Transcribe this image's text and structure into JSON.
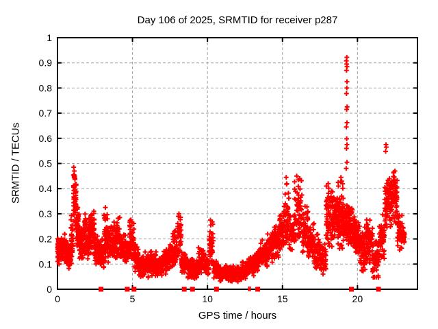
{
  "window": {
    "background": "#ffffff"
  },
  "chart_data": {
    "type": "scatter",
    "marker": "plus",
    "title": "Day 106 of 2025, SRMTID for receiver p287",
    "xlabel": "GPS time / hours",
    "ylabel": "SRMTID / TECUs",
    "xlim": [
      0,
      24
    ],
    "ylim": [
      0,
      1
    ],
    "grid": true,
    "legend": "none",
    "xticks": [
      0,
      5,
      10,
      15,
      20
    ],
    "xtick_labels": [
      "0",
      "5",
      "10",
      "15",
      "20"
    ],
    "yticks": [
      0,
      0.1,
      0.2,
      0.3,
      0.4,
      0.5,
      0.6,
      0.7,
      0.8,
      0.9,
      1
    ],
    "ytick_labels": [
      "0",
      "0.1",
      "0.2",
      "0.3",
      "0.4",
      "0.5",
      "0.6",
      "0.7",
      "0.8",
      "0.9",
      "1"
    ],
    "colors": {
      "marker": "#ff0000",
      "grid": "#a0a0a0",
      "axis": "#000000",
      "text": "#000000"
    },
    "sample_interval_hours": 0.008333,
    "count_scale": 0.7,
    "density_segments": [
      [
        0.0,
        0.3,
        0.1,
        0.21,
        90
      ],
      [
        0.3,
        0.6,
        0.11,
        0.22,
        90
      ],
      [
        0.6,
        0.9,
        0.07,
        0.19,
        80
      ],
      [
        0.9,
        1.05,
        0.1,
        0.3,
        40
      ],
      [
        1.05,
        1.25,
        0.25,
        0.47,
        70
      ],
      [
        1.25,
        1.45,
        0.17,
        0.33,
        60
      ],
      [
        1.45,
        1.7,
        0.12,
        0.26,
        65
      ],
      [
        1.7,
        1.9,
        0.14,
        0.32,
        55
      ],
      [
        1.9,
        2.1,
        0.12,
        0.25,
        55
      ],
      [
        2.1,
        2.45,
        0.14,
        0.33,
        85
      ],
      [
        2.45,
        2.8,
        0.1,
        0.22,
        80
      ],
      [
        2.8,
        3.1,
        0.08,
        0.2,
        70
      ],
      [
        3.1,
        3.35,
        0.11,
        0.33,
        60
      ],
      [
        3.35,
        3.6,
        0.1,
        0.25,
        60
      ],
      [
        3.6,
        3.9,
        0.11,
        0.28,
        70
      ],
      [
        3.9,
        4.2,
        0.12,
        0.3,
        70
      ],
      [
        4.2,
        4.55,
        0.1,
        0.22,
        75
      ],
      [
        4.55,
        4.8,
        0.11,
        0.2,
        55
      ],
      [
        4.8,
        5.1,
        0.12,
        0.28,
        65
      ],
      [
        5.1,
        5.4,
        0.07,
        0.18,
        60
      ],
      [
        5.4,
        5.8,
        0.05,
        0.13,
        75
      ],
      [
        5.8,
        6.2,
        0.04,
        0.15,
        80
      ],
      [
        6.2,
        6.6,
        0.05,
        0.16,
        80
      ],
      [
        6.6,
        7.0,
        0.05,
        0.13,
        75
      ],
      [
        7.0,
        7.4,
        0.06,
        0.16,
        75
      ],
      [
        7.4,
        7.7,
        0.08,
        0.18,
        55
      ],
      [
        7.7,
        8.0,
        0.09,
        0.24,
        55
      ],
      [
        8.0,
        8.25,
        0.11,
        0.3,
        50
      ],
      [
        8.25,
        8.6,
        0.06,
        0.15,
        65
      ],
      [
        8.6,
        9.0,
        0.04,
        0.12,
        70
      ],
      [
        9.0,
        9.4,
        0.04,
        0.12,
        70
      ],
      [
        9.4,
        9.8,
        0.05,
        0.17,
        70
      ],
      [
        9.8,
        10.1,
        0.05,
        0.14,
        55
      ],
      [
        10.1,
        10.4,
        0.07,
        0.27,
        50
      ],
      [
        10.4,
        10.8,
        0.04,
        0.12,
        70
      ],
      [
        10.8,
        11.3,
        0.03,
        0.1,
        85
      ],
      [
        11.3,
        11.8,
        0.03,
        0.1,
        85
      ],
      [
        11.8,
        12.3,
        0.03,
        0.09,
        85
      ],
      [
        12.3,
        12.7,
        0.04,
        0.11,
        70
      ],
      [
        12.7,
        13.1,
        0.05,
        0.13,
        70
      ],
      [
        13.1,
        13.5,
        0.07,
        0.16,
        70
      ],
      [
        13.5,
        14.0,
        0.09,
        0.2,
        85
      ],
      [
        14.0,
        14.4,
        0.1,
        0.23,
        70
      ],
      [
        14.4,
        14.8,
        0.12,
        0.27,
        70
      ],
      [
        14.8,
        15.1,
        0.14,
        0.3,
        55
      ],
      [
        15.1,
        15.45,
        0.17,
        0.44,
        70
      ],
      [
        15.45,
        15.8,
        0.14,
        0.3,
        60
      ],
      [
        15.8,
        16.3,
        0.17,
        0.44,
        85
      ],
      [
        16.3,
        16.7,
        0.14,
        0.33,
        70
      ],
      [
        16.7,
        17.1,
        0.12,
        0.28,
        70
      ],
      [
        17.1,
        17.5,
        0.08,
        0.22,
        70
      ],
      [
        17.5,
        17.9,
        0.05,
        0.18,
        70
      ],
      [
        17.9,
        18.35,
        0.15,
        0.42,
        110
      ],
      [
        18.35,
        18.7,
        0.19,
        0.38,
        85
      ],
      [
        18.7,
        19.05,
        0.15,
        0.44,
        100
      ],
      [
        19.05,
        19.45,
        0.18,
        0.35,
        100
      ],
      [
        19.45,
        19.8,
        0.16,
        0.33,
        75
      ],
      [
        19.8,
        20.15,
        0.14,
        0.28,
        75
      ],
      [
        20.15,
        20.6,
        0.07,
        0.25,
        85
      ],
      [
        20.6,
        21.0,
        0.1,
        0.28,
        80
      ],
      [
        21.0,
        21.45,
        0.04,
        0.2,
        80
      ],
      [
        21.45,
        21.8,
        0.12,
        0.3,
        65
      ],
      [
        21.8,
        22.0,
        0.2,
        0.44,
        50
      ],
      [
        22.0,
        22.35,
        0.24,
        0.46,
        75
      ],
      [
        22.35,
        22.65,
        0.26,
        0.47,
        70
      ],
      [
        22.65,
        23.0,
        0.14,
        0.3,
        60
      ],
      [
        23.0,
        23.15,
        0.16,
        0.25,
        25
      ]
    ],
    "highlight_points": [
      [
        1.08,
        0.485
      ],
      [
        1.12,
        0.47
      ],
      [
        1.1,
        0.455
      ],
      [
        8.1,
        0.3
      ],
      [
        10.2,
        0.275
      ],
      [
        15.25,
        0.445
      ],
      [
        15.95,
        0.45
      ],
      [
        16.05,
        0.435
      ],
      [
        16.15,
        0.44
      ],
      [
        18.05,
        0.42
      ],
      [
        18.9,
        0.445
      ],
      [
        18.95,
        0.43
      ],
      [
        19.25,
        0.48
      ],
      [
        19.3,
        0.505
      ],
      [
        19.27,
        0.56
      ],
      [
        19.3,
        0.575
      ],
      [
        19.28,
        0.598
      ],
      [
        19.26,
        0.645
      ],
      [
        19.3,
        0.662
      ],
      [
        19.28,
        0.715
      ],
      [
        19.31,
        0.725
      ],
      [
        19.27,
        0.778
      ],
      [
        19.29,
        0.8
      ],
      [
        19.3,
        0.825
      ],
      [
        19.27,
        0.87
      ],
      [
        19.3,
        0.885
      ],
      [
        19.28,
        0.895
      ],
      [
        19.26,
        0.908
      ],
      [
        19.29,
        0.922
      ],
      [
        21.88,
        0.548
      ],
      [
        21.92,
        0.565
      ],
      [
        21.9,
        0.575
      ],
      [
        22.42,
        0.465
      ],
      [
        22.5,
        0.47
      ]
    ],
    "zero_markers": [
      2.9,
      4.65,
      5.1,
      8.45,
      9.0,
      10.6,
      13.35,
      19.6,
      21.4
    ],
    "zero_ticks": [
      12.75,
      12.85
    ]
  }
}
